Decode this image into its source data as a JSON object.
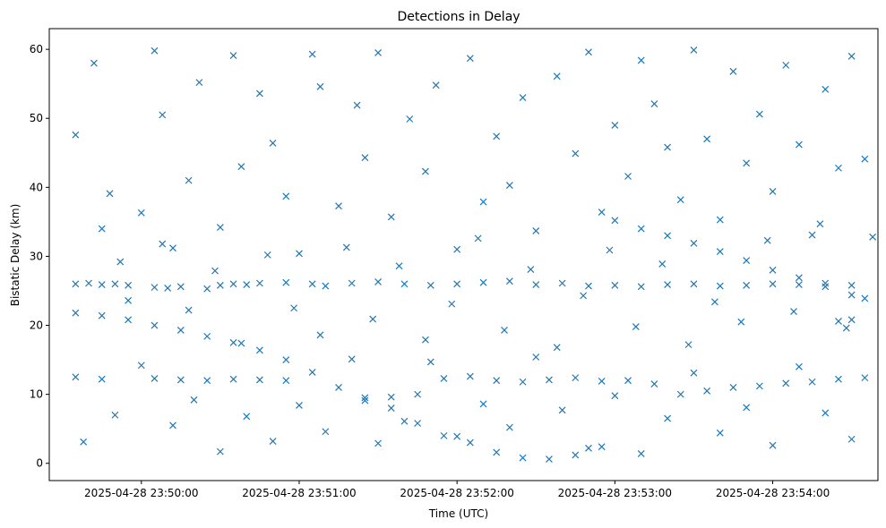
{
  "chart_data": {
    "type": "scatter",
    "title": "Detections in Delay",
    "xlabel": "Time (UTC)",
    "ylabel": "Bistatic Delay (km)",
    "ylim": [
      -2.5,
      63
    ],
    "xlim": [
      "2025-04-28 23:49:25",
      "2025-04-28 23:54:40"
    ],
    "x_ticks": [
      "2025-04-28 23:50:00",
      "2025-04-28 23:51:00",
      "2025-04-28 23:52:00",
      "2025-04-28 23:53:00",
      "2025-04-28 23:54:00"
    ],
    "y_ticks": [
      0,
      10,
      20,
      30,
      40,
      50,
      60
    ],
    "marker": "x",
    "color": "#1f77b4",
    "grid": false,
    "series": [
      {
        "points": [
          [
            "2025-04-28 23:49:35",
            26.0
          ],
          [
            "2025-04-28 23:49:40",
            26.1
          ],
          [
            "2025-04-28 23:49:45",
            25.9
          ],
          [
            "2025-04-28 23:49:50",
            26.0
          ],
          [
            "2025-04-28 23:49:55",
            25.8
          ],
          [
            "2025-04-28 23:50:05",
            25.5
          ],
          [
            "2025-04-28 23:50:10",
            25.4
          ],
          [
            "2025-04-28 23:50:15",
            25.6
          ],
          [
            "2025-04-28 23:50:25",
            25.3
          ],
          [
            "2025-04-28 23:50:30",
            25.8
          ],
          [
            "2025-04-28 23:50:35",
            26.0
          ],
          [
            "2025-04-28 23:50:40",
            25.9
          ],
          [
            "2025-04-28 23:50:45",
            26.1
          ],
          [
            "2025-04-28 23:50:55",
            26.2
          ],
          [
            "2025-04-28 23:51:05",
            26.0
          ],
          [
            "2025-04-28 23:51:10",
            25.7
          ],
          [
            "2025-04-28 23:51:20",
            26.1
          ],
          [
            "2025-04-28 23:51:30",
            26.3
          ],
          [
            "2025-04-28 23:51:40",
            26.0
          ],
          [
            "2025-04-28 23:51:50",
            25.8
          ],
          [
            "2025-04-28 23:52:00",
            26.0
          ],
          [
            "2025-04-28 23:52:10",
            26.2
          ],
          [
            "2025-04-28 23:52:20",
            26.4
          ],
          [
            "2025-04-28 23:52:30",
            25.9
          ],
          [
            "2025-04-28 23:52:40",
            26.1
          ],
          [
            "2025-04-28 23:52:50",
            25.7
          ],
          [
            "2025-04-28 23:53:00",
            25.8
          ],
          [
            "2025-04-28 23:53:10",
            25.6
          ],
          [
            "2025-04-28 23:53:20",
            25.9
          ],
          [
            "2025-04-28 23:53:30",
            26.0
          ],
          [
            "2025-04-28 23:53:40",
            25.7
          ],
          [
            "2025-04-28 23:53:50",
            25.8
          ],
          [
            "2025-04-28 23:54:00",
            26.0
          ],
          [
            "2025-04-28 23:54:10",
            25.9
          ],
          [
            "2025-04-28 23:54:20",
            26.1
          ],
          [
            "2025-04-28 23:54:30",
            25.8
          ],
          [
            "2025-04-28 23:49:35",
            21.8
          ],
          [
            "2025-04-28 23:49:45",
            21.4
          ],
          [
            "2025-04-28 23:49:55",
            20.8
          ],
          [
            "2025-04-28 23:50:05",
            20.0
          ],
          [
            "2025-04-28 23:50:15",
            19.3
          ],
          [
            "2025-04-28 23:50:25",
            18.4
          ],
          [
            "2025-04-28 23:50:35",
            17.5
          ],
          [
            "2025-04-28 23:50:45",
            16.4
          ],
          [
            "2025-04-28 23:50:55",
            15.0
          ],
          [
            "2025-04-28 23:51:05",
            13.2
          ],
          [
            "2025-04-28 23:51:15",
            11.0
          ],
          [
            "2025-04-28 23:51:25",
            9.5
          ],
          [
            "2025-04-28 23:51:35",
            8.0
          ],
          [
            "2025-04-28 23:51:45",
            5.8
          ],
          [
            "2025-04-28 23:51:55",
            4.0
          ],
          [
            "2025-04-28 23:52:05",
            3.0
          ],
          [
            "2025-04-28 23:52:15",
            1.6
          ],
          [
            "2025-04-28 23:52:25",
            0.8
          ],
          [
            "2025-04-28 23:52:35",
            0.6
          ],
          [
            "2025-04-28 23:52:45",
            1.2
          ],
          [
            "2025-04-28 23:52:55",
            2.4
          ],
          [
            "2025-04-28 23:49:35",
            12.5
          ],
          [
            "2025-04-28 23:49:45",
            12.2
          ],
          [
            "2025-04-28 23:50:05",
            12.3
          ],
          [
            "2025-04-28 23:50:15",
            12.1
          ],
          [
            "2025-04-28 23:50:25",
            12.0
          ],
          [
            "2025-04-28 23:50:35",
            12.2
          ],
          [
            "2025-04-28 23:50:45",
            12.1
          ],
          [
            "2025-04-28 23:50:55",
            12.0
          ],
          [
            "2025-04-28 23:51:25",
            9.1
          ],
          [
            "2025-04-28 23:51:35",
            9.6
          ],
          [
            "2025-04-28 23:51:45",
            10.0
          ],
          [
            "2025-04-28 23:51:55",
            12.3
          ],
          [
            "2025-04-28 23:52:05",
            12.6
          ],
          [
            "2025-04-28 23:52:15",
            12.0
          ],
          [
            "2025-04-28 23:52:25",
            11.8
          ],
          [
            "2025-04-28 23:52:35",
            12.1
          ],
          [
            "2025-04-28 23:52:45",
            12.4
          ],
          [
            "2025-04-28 23:52:55",
            11.9
          ],
          [
            "2025-04-28 23:53:05",
            12.0
          ],
          [
            "2025-04-28 23:53:15",
            11.5
          ],
          [
            "2025-04-28 23:53:25",
            10.0
          ],
          [
            "2025-04-28 23:53:35",
            10.5
          ],
          [
            "2025-04-28 23:53:45",
            11.0
          ],
          [
            "2025-04-28 23:53:55",
            11.2
          ],
          [
            "2025-04-28 23:54:05",
            11.6
          ],
          [
            "2025-04-28 23:54:15",
            11.8
          ],
          [
            "2025-04-28 23:54:25",
            12.2
          ],
          [
            "2025-04-28 23:54:35",
            12.4
          ],
          [
            "2025-04-28 23:53:00",
            35.2
          ],
          [
            "2025-04-28 23:53:10",
            34.0
          ],
          [
            "2025-04-28 23:53:20",
            33.0
          ],
          [
            "2025-04-28 23:53:30",
            31.9
          ],
          [
            "2025-04-28 23:53:40",
            30.7
          ],
          [
            "2025-04-28 23:53:50",
            29.4
          ],
          [
            "2025-04-28 23:54:00",
            28.0
          ],
          [
            "2025-04-28 23:54:10",
            26.9
          ],
          [
            "2025-04-28 23:54:20",
            25.6
          ],
          [
            "2025-04-28 23:54:30",
            24.4
          ],
          [
            "2025-04-28 23:54:35",
            23.9
          ],
          [
            "2025-04-28 23:54:25",
            20.6
          ],
          [
            "2025-04-28 23:54:30",
            20.8
          ],
          [
            "2025-04-28 23:49:35",
            47.6
          ],
          [
            "2025-04-28 23:49:42",
            58.0
          ],
          [
            "2025-04-28 23:49:48",
            39.1
          ],
          [
            "2025-04-28 23:49:52",
            29.2
          ],
          [
            "2025-04-28 23:50:00",
            36.3
          ],
          [
            "2025-04-28 23:50:05",
            59.8
          ],
          [
            "2025-04-28 23:50:08",
            50.5
          ],
          [
            "2025-04-28 23:50:12",
            31.2
          ],
          [
            "2025-04-28 23:50:18",
            41.0
          ],
          [
            "2025-04-28 23:50:22",
            55.2
          ],
          [
            "2025-04-28 23:50:30",
            34.2
          ],
          [
            "2025-04-28 23:50:35",
            59.1
          ],
          [
            "2025-04-28 23:50:38",
            43.0
          ],
          [
            "2025-04-28 23:50:45",
            53.6
          ],
          [
            "2025-04-28 23:50:50",
            46.4
          ],
          [
            "2025-04-28 23:50:55",
            38.7
          ],
          [
            "2025-04-28 23:51:00",
            30.4
          ],
          [
            "2025-04-28 23:51:05",
            59.3
          ],
          [
            "2025-04-28 23:51:08",
            54.6
          ],
          [
            "2025-04-28 23:51:15",
            37.3
          ],
          [
            "2025-04-28 23:51:22",
            51.9
          ],
          [
            "2025-04-28 23:51:25",
            44.3
          ],
          [
            "2025-04-28 23:51:30",
            59.5
          ],
          [
            "2025-04-28 23:51:35",
            35.7
          ],
          [
            "2025-04-28 23:51:42",
            49.9
          ],
          [
            "2025-04-28 23:51:48",
            42.3
          ],
          [
            "2025-04-28 23:51:52",
            54.8
          ],
          [
            "2025-04-28 23:52:00",
            31.0
          ],
          [
            "2025-04-28 23:52:05",
            58.7
          ],
          [
            "2025-04-28 23:52:10",
            37.9
          ],
          [
            "2025-04-28 23:52:15",
            47.4
          ],
          [
            "2025-04-28 23:52:20",
            40.3
          ],
          [
            "2025-04-28 23:52:25",
            53.0
          ],
          [
            "2025-04-28 23:52:30",
            33.7
          ],
          [
            "2025-04-28 23:52:38",
            56.1
          ],
          [
            "2025-04-28 23:52:45",
            44.9
          ],
          [
            "2025-04-28 23:52:50",
            59.6
          ],
          [
            "2025-04-28 23:52:55",
            36.4
          ],
          [
            "2025-04-28 23:53:00",
            49.0
          ],
          [
            "2025-04-28 23:53:05",
            41.6
          ],
          [
            "2025-04-28 23:53:10",
            58.4
          ],
          [
            "2025-04-28 23:53:15",
            52.1
          ],
          [
            "2025-04-28 23:53:20",
            45.8
          ],
          [
            "2025-04-28 23:53:25",
            38.2
          ],
          [
            "2025-04-28 23:53:30",
            59.9
          ],
          [
            "2025-04-28 23:53:35",
            47.0
          ],
          [
            "2025-04-28 23:53:40",
            35.3
          ],
          [
            "2025-04-28 23:53:45",
            56.8
          ],
          [
            "2025-04-28 23:53:50",
            43.5
          ],
          [
            "2025-04-28 23:53:55",
            50.6
          ],
          [
            "2025-04-28 23:54:00",
            39.4
          ],
          [
            "2025-04-28 23:54:05",
            57.7
          ],
          [
            "2025-04-28 23:54:10",
            46.2
          ],
          [
            "2025-04-28 23:54:15",
            33.1
          ],
          [
            "2025-04-28 23:54:20",
            54.2
          ],
          [
            "2025-04-28 23:54:25",
            42.8
          ],
          [
            "2025-04-28 23:54:30",
            59.0
          ],
          [
            "2025-04-28 23:54:35",
            44.1
          ],
          [
            "2025-04-28 23:49:38",
            3.1
          ],
          [
            "2025-04-28 23:49:50",
            7.0
          ],
          [
            "2025-04-28 23:50:00",
            14.2
          ],
          [
            "2025-04-28 23:50:12",
            5.5
          ],
          [
            "2025-04-28 23:50:20",
            9.2
          ],
          [
            "2025-04-28 23:50:30",
            1.7
          ],
          [
            "2025-04-28 23:50:40",
            6.8
          ],
          [
            "2025-04-28 23:50:50",
            3.2
          ],
          [
            "2025-04-28 23:51:00",
            8.4
          ],
          [
            "2025-04-28 23:51:10",
            4.6
          ],
          [
            "2025-04-28 23:51:20",
            15.1
          ],
          [
            "2025-04-28 23:51:30",
            2.9
          ],
          [
            "2025-04-28 23:51:40",
            6.1
          ],
          [
            "2025-04-28 23:51:50",
            14.7
          ],
          [
            "2025-04-28 23:52:00",
            3.9
          ],
          [
            "2025-04-28 23:52:10",
            8.6
          ],
          [
            "2025-04-28 23:52:20",
            5.2
          ],
          [
            "2025-04-28 23:52:30",
            15.4
          ],
          [
            "2025-04-28 23:52:40",
            7.7
          ],
          [
            "2025-04-28 23:52:50",
            2.2
          ],
          [
            "2025-04-28 23:53:00",
            9.8
          ],
          [
            "2025-04-28 23:53:10",
            1.4
          ],
          [
            "2025-04-28 23:53:20",
            6.5
          ],
          [
            "2025-04-28 23:53:30",
            13.1
          ],
          [
            "2025-04-28 23:53:40",
            4.4
          ],
          [
            "2025-04-28 23:53:50",
            8.1
          ],
          [
            "2025-04-28 23:54:00",
            2.6
          ],
          [
            "2025-04-28 23:54:10",
            14.0
          ],
          [
            "2025-04-28 23:54:20",
            7.3
          ],
          [
            "2025-04-28 23:54:30",
            3.5
          ],
          [
            "2025-04-28 23:49:45",
            34.0
          ],
          [
            "2025-04-28 23:49:55",
            23.6
          ],
          [
            "2025-04-28 23:50:08",
            31.8
          ],
          [
            "2025-04-28 23:50:18",
            22.2
          ],
          [
            "2025-04-28 23:50:28",
            27.9
          ],
          [
            "2025-04-28 23:50:38",
            17.4
          ],
          [
            "2025-04-28 23:50:48",
            30.2
          ],
          [
            "2025-04-28 23:50:58",
            22.5
          ],
          [
            "2025-04-28 23:51:08",
            18.6
          ],
          [
            "2025-04-28 23:51:18",
            31.3
          ],
          [
            "2025-04-28 23:51:28",
            20.9
          ],
          [
            "2025-04-28 23:51:38",
            28.6
          ],
          [
            "2025-04-28 23:51:48",
            17.9
          ],
          [
            "2025-04-28 23:51:58",
            23.1
          ],
          [
            "2025-04-28 23:52:08",
            32.6
          ],
          [
            "2025-04-28 23:52:18",
            19.3
          ],
          [
            "2025-04-28 23:52:28",
            28.1
          ],
          [
            "2025-04-28 23:52:38",
            16.8
          ],
          [
            "2025-04-28 23:52:48",
            24.3
          ],
          [
            "2025-04-28 23:52:58",
            30.9
          ],
          [
            "2025-04-28 23:53:08",
            19.8
          ],
          [
            "2025-04-28 23:53:18",
            28.9
          ],
          [
            "2025-04-28 23:53:28",
            17.2
          ],
          [
            "2025-04-28 23:53:38",
            23.4
          ],
          [
            "2025-04-28 23:53:48",
            20.5
          ],
          [
            "2025-04-28 23:53:58",
            32.3
          ],
          [
            "2025-04-28 23:54:08",
            22.0
          ],
          [
            "2025-04-28 23:54:18",
            34.7
          ],
          [
            "2025-04-28 23:54:28",
            19.6
          ],
          [
            "2025-04-28 23:54:38",
            32.8
          ]
        ]
      }
    ]
  }
}
